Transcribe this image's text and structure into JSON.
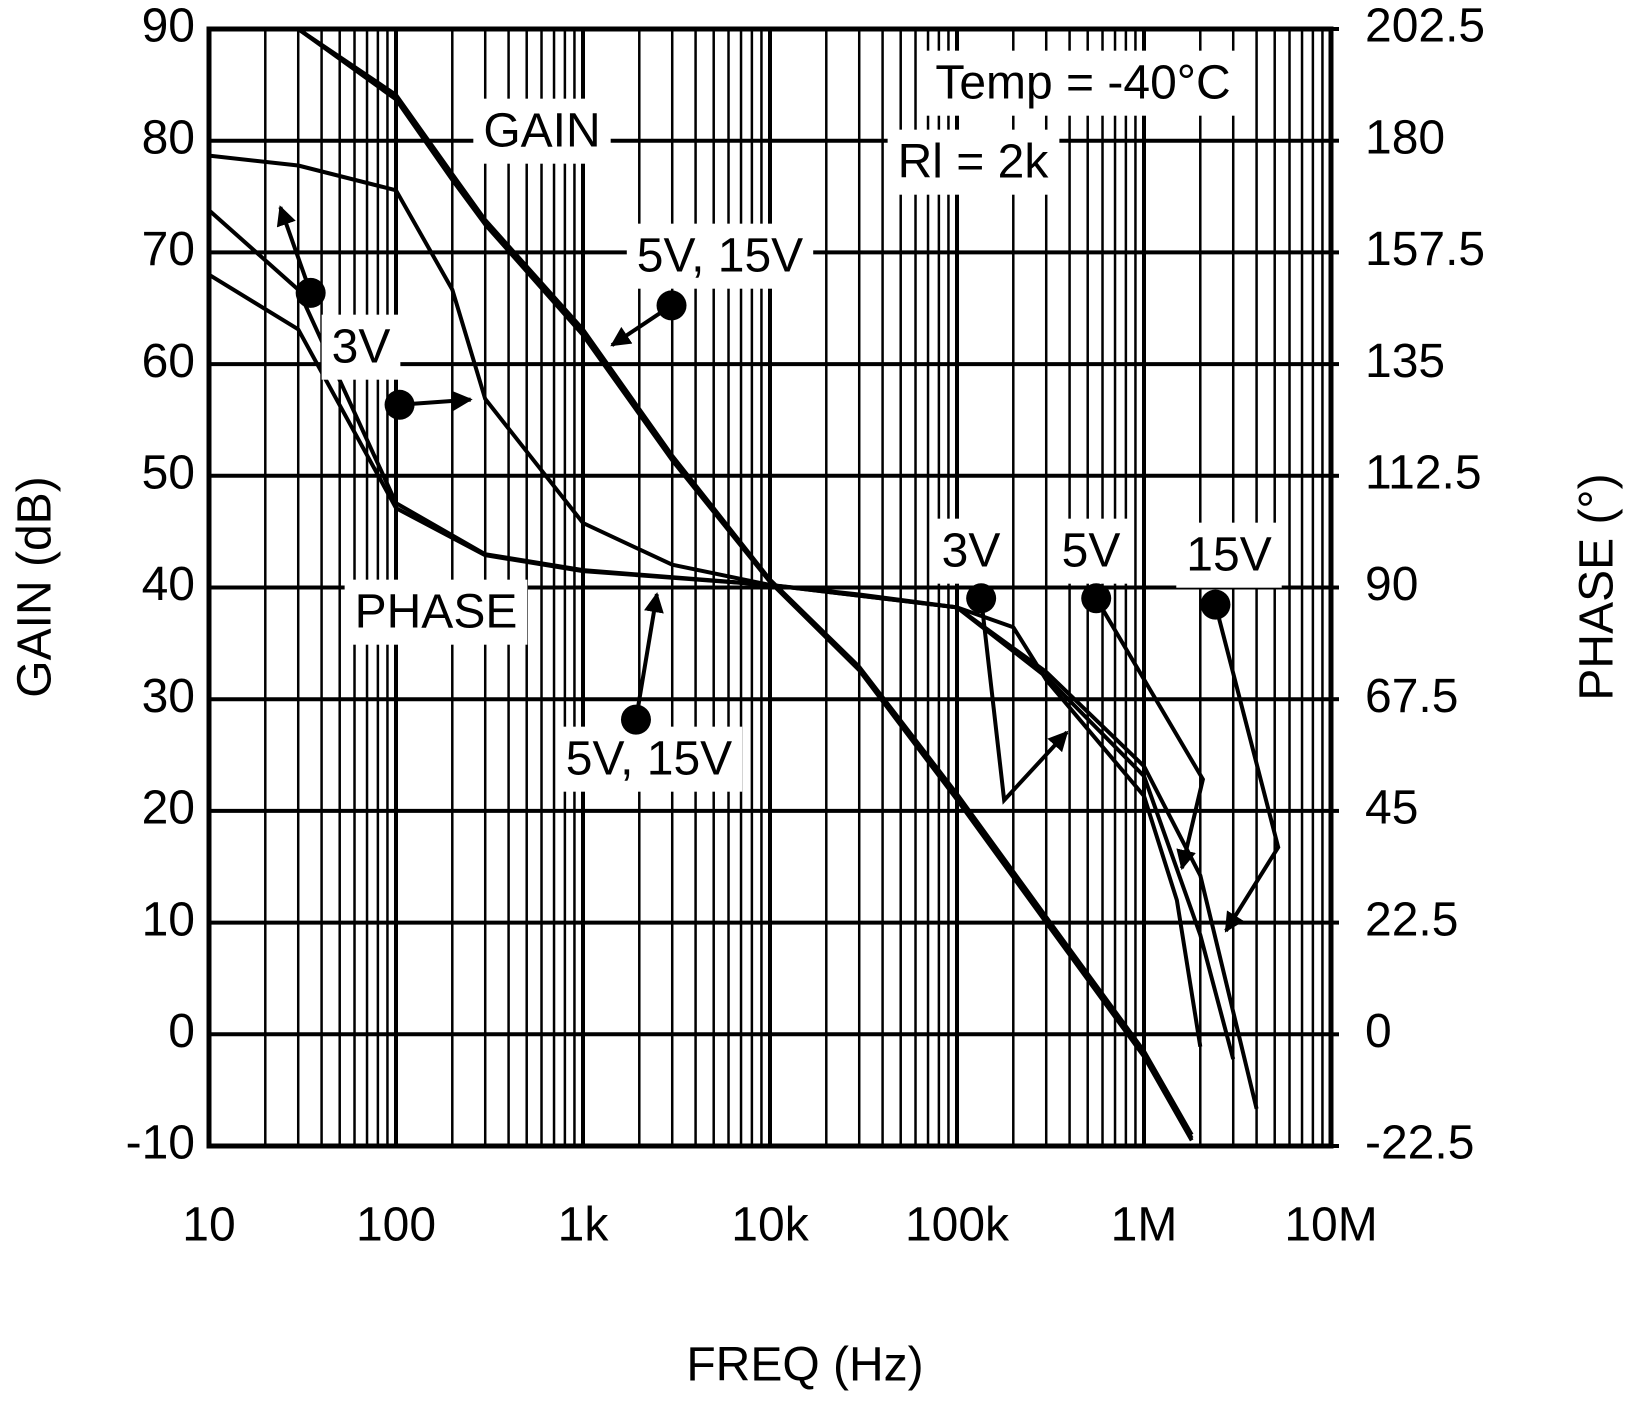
{
  "chart_data": {
    "type": "line",
    "xlabel": "FREQ (Hz)",
    "ylabel": "GAIN (dB)",
    "y2label": "PHASE (°)",
    "xscale": "log",
    "grid": true,
    "xlim": [
      10,
      10000000
    ],
    "xticks": [
      10,
      100,
      {
        "value": 1000,
        "label": "1k"
      },
      {
        "value": 10000,
        "label": "10k"
      },
      {
        "value": 100000,
        "label": "100k"
      },
      {
        "value": 1000000,
        "label": "1M"
      },
      {
        "value": 10000000,
        "label": "10M"
      }
    ],
    "ylim": [
      -10,
      90
    ],
    "yticks": [
      -10,
      0,
      10,
      20,
      30,
      40,
      50,
      60,
      70,
      80,
      90
    ],
    "y2lim": [
      -22.5,
      202.5
    ],
    "y2ticks": [
      -22.5,
      0,
      22.5,
      45,
      67.5,
      90,
      112.5,
      135,
      157.5,
      180,
      202.5
    ],
    "series": [
      {
        "color": "#000000",
        "x": [
          30,
          100,
          200,
          300,
          1000,
          3000,
          10000,
          30000,
          100000,
          300000,
          1000000,
          1800000
        ],
        "values": [
          90,
          83.7,
          76.5,
          72.5,
          62.6,
          51.4,
          40.5,
          32.6,
          21,
          10,
          -2,
          -9.5
        ]
      },
      {
        "color": "#000000",
        "x": [
          30,
          100,
          200,
          300,
          1000,
          3000,
          10000,
          30000,
          100000,
          300000,
          1000000,
          1800000
        ],
        "values": [
          90,
          83.9,
          76.8,
          72.7,
          62.9,
          51.6,
          40.6,
          32.8,
          21.3,
          10.3,
          -1.7,
          -9.3
        ]
      },
      {
        "color": "#000000",
        "x": [
          30,
          100,
          200,
          300,
          1000,
          3000,
          10000,
          30000,
          100000,
          300000,
          1000000,
          1800000
        ],
        "values": [
          90,
          84.1,
          77,
          72.9,
          63.1,
          51.8,
          40.7,
          32.9,
          21.5,
          10.5,
          -1.5,
          -9
        ]
      },
      {
        "color": "#000000",
        "axis": "y2",
        "x": [
          10,
          30,
          100,
          200,
          300,
          1000,
          3000,
          10000,
          30000,
          100000,
          200000,
          300000,
          1000000,
          1500000,
          2000000
        ],
        "values": [
          177,
          175,
          170,
          150,
          128,
          103,
          94.6,
          90.5,
          88.6,
          86,
          82,
          71.4,
          48,
          27,
          -2.5
        ]
      },
      {
        "color": "#000000",
        "axis": "y2",
        "x": [
          10,
          30,
          100,
          300,
          1000,
          10000,
          100000,
          300000,
          1000000,
          2000000,
          3000000
        ],
        "values": [
          166,
          150,
          107,
          96.7,
          93.5,
          90.5,
          86,
          72,
          52,
          20,
          -5
        ]
      },
      {
        "color": "#000000",
        "axis": "y2",
        "x": [
          10,
          30,
          100,
          300,
          1000,
          10000,
          100000,
          300000,
          1000000,
          2000000,
          4000000
        ],
        "values": [
          153,
          142,
          106,
          96.5,
          93.3,
          90.5,
          86,
          73,
          54,
          32,
          -15
        ]
      }
    ],
    "annotations": [
      "Temp = -40°C",
      "Rl = 2k",
      "GAIN",
      "5V, 15V",
      "3V",
      "PHASE",
      "5V, 15V",
      "3V",
      "5V",
      "15V"
    ]
  }
}
